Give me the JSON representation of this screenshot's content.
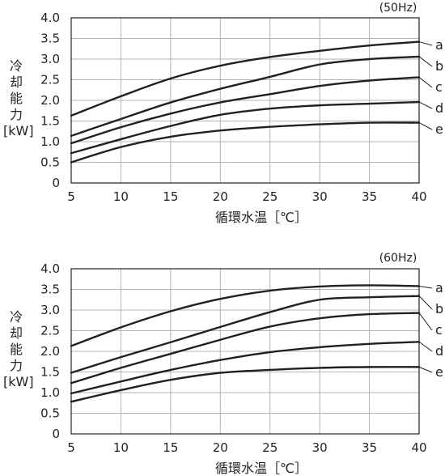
{
  "chart_data": [
    {
      "type": "line",
      "title": "(50Hz)",
      "xlabel": "循環水温［℃］",
      "ylabel_lines": [
        "冷",
        "却",
        "能",
        "力",
        "[kW]"
      ],
      "xlim": [
        5,
        40
      ],
      "ylim": [
        0,
        4.0
      ],
      "x_ticks": [
        "5",
        "10",
        "15",
        "20",
        "25",
        "30",
        "35",
        "40"
      ],
      "y_ticks": [
        "0",
        "0.5",
        "1.0",
        "1.5",
        "2.0",
        "2.5",
        "3.0",
        "3.5",
        "4.0"
      ],
      "grid": true,
      "x": [
        5,
        10,
        15,
        20,
        25,
        30,
        35,
        40
      ],
      "series": [
        {
          "name": "a",
          "values": [
            1.63,
            2.1,
            2.53,
            2.84,
            3.05,
            3.2,
            3.33,
            3.42
          ]
        },
        {
          "name": "b",
          "values": [
            1.14,
            1.55,
            1.95,
            2.28,
            2.57,
            2.87,
            3.0,
            3.06
          ]
        },
        {
          "name": "c",
          "values": [
            0.96,
            1.35,
            1.68,
            1.95,
            2.15,
            2.35,
            2.48,
            2.56
          ]
        },
        {
          "name": "d",
          "values": [
            0.72,
            1.06,
            1.38,
            1.65,
            1.8,
            1.88,
            1.92,
            1.96
          ]
        },
        {
          "name": "e",
          "values": [
            0.5,
            0.87,
            1.12,
            1.27,
            1.36,
            1.42,
            1.46,
            1.46
          ]
        }
      ]
    },
    {
      "type": "line",
      "title": "(60Hz)",
      "xlabel": "循環水温［℃］",
      "ylabel_lines": [
        "冷",
        "却",
        "能",
        "力",
        "[kW]"
      ],
      "xlim": [
        5,
        40
      ],
      "ylim": [
        0,
        4.0
      ],
      "x_ticks": [
        "5",
        "10",
        "15",
        "20",
        "25",
        "30",
        "35",
        "40"
      ],
      "y_ticks": [
        "0",
        "0.5",
        "1.0",
        "1.5",
        "2.0",
        "2.5",
        "3.0",
        "3.5",
        "4.0"
      ],
      "grid": true,
      "x": [
        5,
        10,
        15,
        20,
        25,
        30,
        35,
        40
      ],
      "series": [
        {
          "name": "a",
          "values": [
            2.13,
            2.58,
            2.97,
            3.27,
            3.47,
            3.57,
            3.6,
            3.58
          ]
        },
        {
          "name": "b",
          "values": [
            1.48,
            1.86,
            2.22,
            2.59,
            2.95,
            3.25,
            3.31,
            3.34
          ]
        },
        {
          "name": "c",
          "values": [
            1.23,
            1.6,
            1.94,
            2.28,
            2.6,
            2.8,
            2.9,
            2.93
          ]
        },
        {
          "name": "d",
          "values": [
            0.98,
            1.27,
            1.55,
            1.79,
            1.98,
            2.1,
            2.18,
            2.23
          ]
        },
        {
          "name": "e",
          "values": [
            0.78,
            1.06,
            1.31,
            1.48,
            1.55,
            1.6,
            1.62,
            1.62
          ]
        }
      ]
    }
  ]
}
